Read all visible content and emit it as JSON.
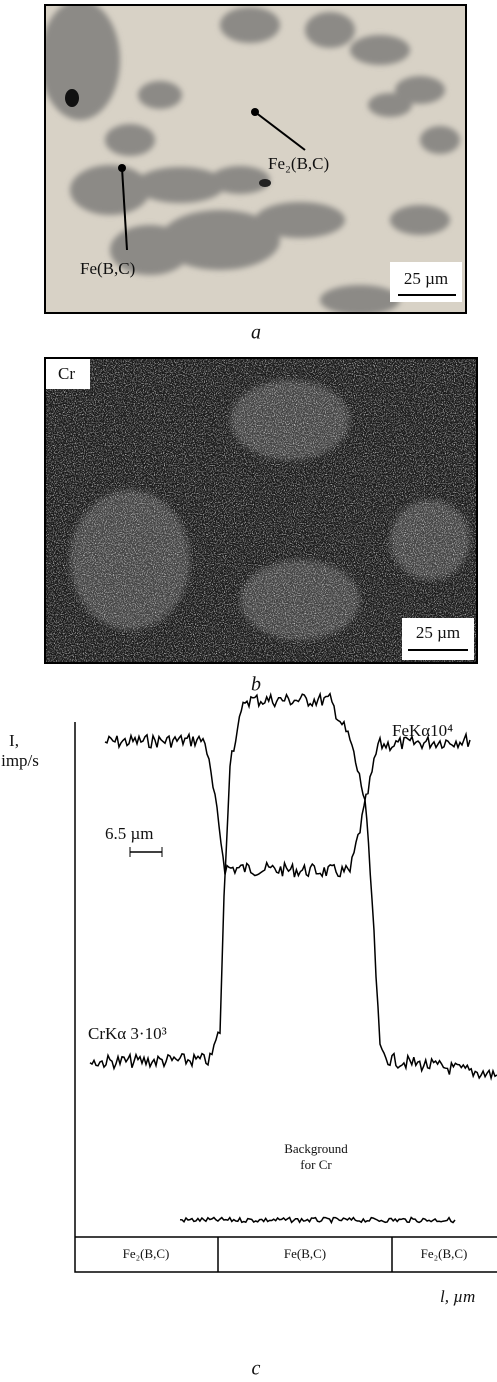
{
  "panel_a": {
    "phase_1": "Fe₂(B,C)",
    "phase_2": "Fe(B,C)",
    "scale": "25 µm",
    "caption": "a"
  },
  "panel_b": {
    "element": "Cr",
    "scale": "25 µm",
    "caption": "b"
  },
  "panel_c": {
    "y_label": [
      "I,",
      "imp/s"
    ],
    "fe_curve": "FeKα10⁴",
    "scale": "6.5 µm",
    "cr_curve": "CrKα 3·10³",
    "background": [
      "Background",
      "for Cr"
    ],
    "phases": [
      "Fe₂(B,C)",
      "Fe(B,C)",
      "Fe₂(B,C)"
    ],
    "x_label": "l, µm",
    "caption": "c"
  }
}
